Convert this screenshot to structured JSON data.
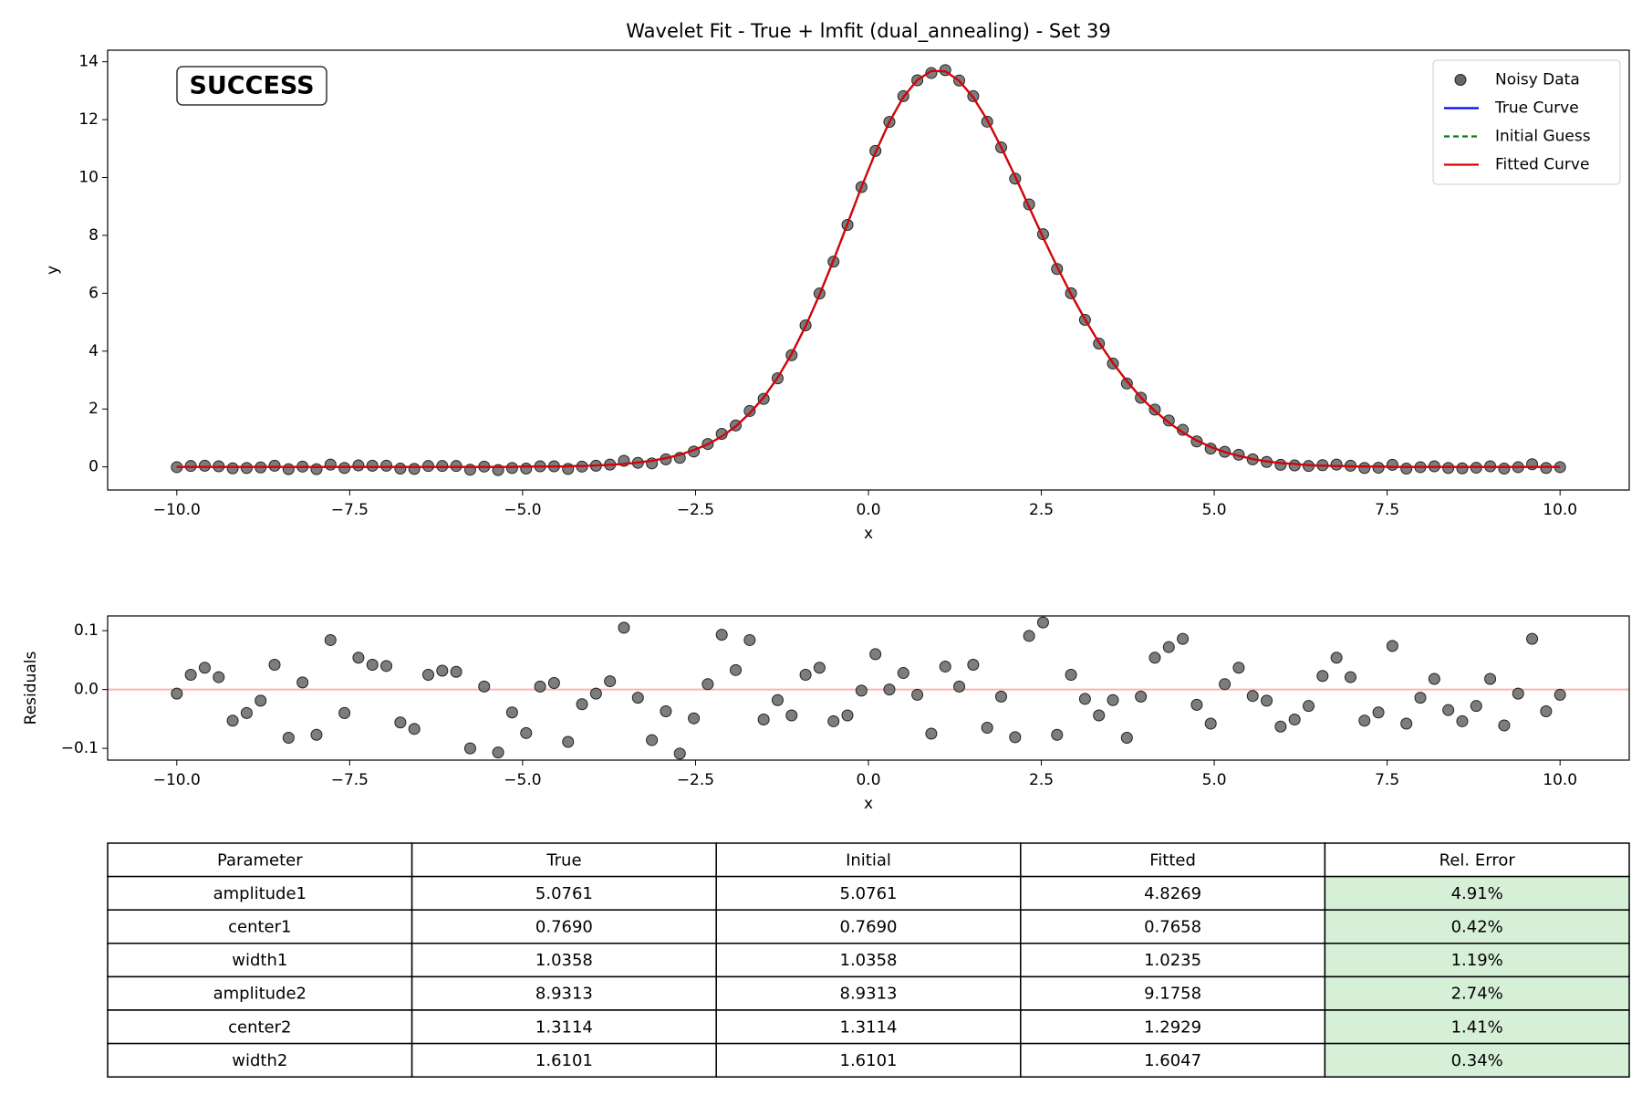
{
  "chart_data": [
    {
      "type": "line",
      "title": "Wavelet Fit - True + lmfit (dual_annealing) - Set 39",
      "badge": "SUCCESS",
      "badge_color": "#008000",
      "x_label": "x",
      "y_label": "y",
      "x": [
        -10,
        -9.798,
        -9.596,
        -9.394,
        -9.192,
        -8.99,
        -8.788,
        -8.586,
        -8.384,
        -8.182,
        -7.98,
        -7.778,
        -7.576,
        -7.374,
        -7.172,
        -6.97,
        -6.768,
        -6.566,
        -6.364,
        -6.162,
        -5.96,
        -5.758,
        -5.556,
        -5.354,
        -5.152,
        -4.949,
        -4.747,
        -4.545,
        -4.343,
        -4.141,
        -3.939,
        -3.737,
        -3.535,
        -3.333,
        -3.131,
        -2.929,
        -2.727,
        -2.525,
        -2.323,
        -2.121,
        -1.919,
        -1.717,
        -1.515,
        -1.313,
        -1.111,
        -0.909,
        -0.707,
        -0.505,
        -0.303,
        -0.101,
        0.101,
        0.303,
        0.505,
        0.707,
        0.909,
        1.111,
        1.313,
        1.515,
        1.717,
        1.919,
        2.121,
        2.323,
        2.525,
        2.727,
        2.929,
        3.131,
        3.333,
        3.535,
        3.737,
        3.939,
        4.141,
        4.343,
        4.545,
        4.747,
        4.949,
        5.152,
        5.354,
        5.556,
        5.758,
        5.96,
        6.162,
        6.364,
        6.566,
        6.768,
        6.97,
        7.172,
        7.374,
        7.576,
        7.778,
        7.98,
        8.182,
        8.384,
        8.586,
        8.788,
        8.99,
        9.192,
        9.394,
        9.596,
        9.798,
        10
      ],
      "series": [
        {
          "name": "Noisy Data",
          "color": "#666666",
          "linestyle": "none",
          "marker": "o",
          "values": [
            -0.01,
            0.03,
            0.04,
            0.02,
            -0.05,
            -0.04,
            -0.02,
            0.04,
            -0.08,
            0.01,
            -0.08,
            0.08,
            -0.04,
            0.05,
            0.04,
            0.04,
            -0.06,
            -0.07,
            0.03,
            0.03,
            0.03,
            -0.1,
            0.01,
            -0.11,
            -0.04,
            -0.06,
            0.02,
            0.02,
            -0.07,
            0.01,
            0.04,
            0.08,
            0.21,
            0.14,
            0.12,
            0.26,
            0.31,
            0.53,
            0.79,
            1.14,
            1.43,
            1.93,
            2.35,
            3.06,
            3.86,
            4.89,
            5.99,
            7.09,
            8.36,
            9.67,
            10.92,
            11.92,
            12.81,
            13.36,
            13.61,
            13.71,
            13.35,
            12.81,
            11.93,
            11.04,
            9.96,
            9.07,
            8.04,
            6.84,
            6.0,
            5.08,
            4.26,
            3.57,
            2.88,
            2.39,
            1.98,
            1.6,
            1.28,
            0.88,
            0.63,
            0.52,
            0.42,
            0.26,
            0.17,
            0.07,
            0.05,
            0.03,
            0.06,
            0.08,
            0.04,
            -0.04,
            -0.03,
            0.07,
            -0.06,
            -0.01,
            0.02,
            -0.04,
            -0.05,
            -0.03,
            0.02,
            -0.06,
            -0.01,
            0.09,
            -0.04,
            -0.01
          ]
        },
        {
          "name": "True Curve",
          "color": "#0000ff",
          "linestyle": "solid",
          "values": [
            0,
            0,
            0,
            0,
            0,
            0,
            0,
            0,
            0,
            0,
            0,
            0,
            0,
            0,
            0,
            0,
            0,
            0,
            0,
            0,
            0,
            0,
            0,
            0,
            0,
            0.01,
            0.01,
            0.01,
            0.02,
            0.03,
            0.05,
            0.07,
            0.1,
            0.15,
            0.21,
            0.3,
            0.42,
            0.58,
            0.78,
            1.05,
            1.4,
            1.85,
            2.4,
            3.08,
            3.9,
            4.86,
            5.95,
            7.14,
            8.4,
            9.67,
            10.86,
            11.92,
            12.78,
            13.37,
            13.68,
            13.67,
            13.34,
            12.77,
            11.99,
            11.05,
            10.04,
            8.98,
            7.93,
            6.92,
            5.97,
            5.1,
            4.3,
            3.59,
            2.96,
            2.4,
            1.93,
            1.53,
            1.19,
            0.91,
            0.69,
            0.51,
            0.38,
            0.27,
            0.19,
            0.13,
            0.1,
            0.06,
            0.04,
            0.03,
            0.02,
            0.01,
            0.01,
            0,
            0,
            0,
            0,
            0,
            0,
            0,
            0,
            0,
            0,
            0,
            0,
            0
          ]
        },
        {
          "name": "Initial Guess",
          "color": "#008000",
          "linestyle": "dashed",
          "values": [
            0,
            0,
            0,
            0,
            0,
            0,
            0,
            0,
            0,
            0,
            0,
            0,
            0,
            0,
            0,
            0,
            0,
            0,
            0,
            0,
            0,
            0,
            0,
            0,
            0,
            0.01,
            0.01,
            0.01,
            0.02,
            0.03,
            0.05,
            0.07,
            0.1,
            0.15,
            0.21,
            0.3,
            0.42,
            0.58,
            0.78,
            1.05,
            1.4,
            1.85,
            2.4,
            3.08,
            3.9,
            4.86,
            5.95,
            7.14,
            8.4,
            9.67,
            10.86,
            11.92,
            12.78,
            13.37,
            13.68,
            13.67,
            13.34,
            12.77,
            11.99,
            11.05,
            10.04,
            8.98,
            7.93,
            6.92,
            5.97,
            5.1,
            4.3,
            3.59,
            2.96,
            2.4,
            1.93,
            1.53,
            1.19,
            0.91,
            0.69,
            0.51,
            0.38,
            0.27,
            0.19,
            0.13,
            0.1,
            0.06,
            0.04,
            0.03,
            0.02,
            0.01,
            0.01,
            0,
            0,
            0,
            0,
            0,
            0,
            0,
            0,
            0,
            0,
            0,
            0,
            0
          ]
        },
        {
          "name": "Fitted Curve",
          "color": "#e00000",
          "linestyle": "solid",
          "values": [
            0,
            0,
            0,
            0,
            0,
            0,
            0,
            0,
            0,
            0,
            0,
            0,
            0,
            0,
            0,
            0,
            0,
            0,
            0,
            0,
            0,
            0,
            0,
            0,
            0,
            0.01,
            0.01,
            0.01,
            0.02,
            0.03,
            0.05,
            0.07,
            0.1,
            0.15,
            0.21,
            0.3,
            0.42,
            0.58,
            0.78,
            1.05,
            1.4,
            1.85,
            2.4,
            3.08,
            3.9,
            4.86,
            5.95,
            7.14,
            8.4,
            9.67,
            10.86,
            11.92,
            12.78,
            13.37,
            13.68,
            13.67,
            13.34,
            12.77,
            11.99,
            11.05,
            10.04,
            8.98,
            7.93,
            6.92,
            5.97,
            5.1,
            4.3,
            3.59,
            2.96,
            2.4,
            1.93,
            1.53,
            1.19,
            0.91,
            0.69,
            0.51,
            0.38,
            0.27,
            0.19,
            0.13,
            0.1,
            0.06,
            0.04,
            0.03,
            0.02,
            0.01,
            0.01,
            0,
            0,
            0,
            0,
            0,
            0,
            0,
            0,
            0,
            0,
            0,
            0,
            0
          ]
        }
      ],
      "xlim": [
        -11,
        11
      ],
      "xticks": [
        {
          "value": -10,
          "label": "−10.0"
        },
        {
          "value": -7.5,
          "label": "−7.5"
        },
        {
          "value": -5,
          "label": "−5.0"
        },
        {
          "value": -2.5,
          "label": "−2.5"
        },
        {
          "value": 0,
          "label": "0.0"
        },
        2.5,
        {
          "value": 5,
          "label": "5.0"
        },
        7.5,
        {
          "value": 10,
          "label": "10.0"
        }
      ],
      "ylim": [
        -0.8,
        14.4
      ],
      "yticks": [
        0,
        2,
        4,
        6,
        8,
        10,
        12,
        14
      ],
      "legend": "upper right"
    },
    {
      "type": "scatter",
      "x_label": "x",
      "y_label": "Residuals",
      "color": "#666666",
      "hline": {
        "value": 0,
        "color": "#ffb0b0"
      },
      "x": [
        -10,
        -9.798,
        -9.596,
        -9.394,
        -9.192,
        -8.99,
        -8.788,
        -8.586,
        -8.384,
        -8.182,
        -7.98,
        -7.778,
        -7.576,
        -7.374,
        -7.172,
        -6.97,
        -6.768,
        -6.566,
        -6.364,
        -6.162,
        -5.96,
        -5.758,
        -5.556,
        -5.354,
        -5.152,
        -4.949,
        -4.747,
        -4.545,
        -4.343,
        -4.141,
        -3.939,
        -3.737,
        -3.535,
        -3.333,
        -3.131,
        -2.929,
        -2.727,
        -2.525,
        -2.323,
        -2.121,
        -1.919,
        -1.717,
        -1.515,
        -1.313,
        -1.111,
        -0.909,
        -0.707,
        -0.505,
        -0.303,
        -0.101,
        0.101,
        0.303,
        0.505,
        0.707,
        0.909,
        1.111,
        1.313,
        1.515,
        1.717,
        1.919,
        2.121,
        2.323,
        2.525,
        2.727,
        2.929,
        3.131,
        3.333,
        3.535,
        3.737,
        3.939,
        4.141,
        4.343,
        4.545,
        4.747,
        4.949,
        5.152,
        5.354,
        5.556,
        5.758,
        5.96,
        6.162,
        6.364,
        6.566,
        6.768,
        6.97,
        7.172,
        7.374,
        7.576,
        7.778,
        7.98,
        8.182,
        8.384,
        8.586,
        8.788,
        8.99,
        9.192,
        9.394,
        9.596,
        9.798,
        10
      ],
      "values": [
        -0.007,
        0.025,
        0.037,
        0.021,
        -0.053,
        -0.04,
        -0.019,
        0.042,
        -0.082,
        0.012,
        -0.077,
        0.084,
        -0.04,
        0.054,
        0.042,
        0.04,
        -0.056,
        -0.067,
        0.025,
        0.032,
        0.03,
        -0.1,
        0.005,
        -0.107,
        -0.039,
        -0.074,
        0.005,
        0.011,
        -0.089,
        -0.025,
        -0.007,
        0.014,
        0.105,
        -0.014,
        -0.086,
        -0.037,
        -0.109,
        -0.049,
        0.009,
        0.093,
        0.033,
        0.084,
        -0.051,
        -0.018,
        -0.044,
        0.025,
        0.037,
        -0.054,
        -0.044,
        -0.002,
        0.06,
        0,
        0.028,
        -0.009,
        -0.075,
        0.039,
        0.005,
        0.042,
        -0.065,
        -0.012,
        -0.081,
        0.091,
        0.114,
        -0.077,
        0.025,
        -0.016,
        -0.044,
        -0.018,
        -0.082,
        -0.012,
        0.054,
        0.072,
        0.086,
        -0.026,
        -0.058,
        0.009,
        0.037,
        -0.011,
        -0.019,
        -0.063,
        -0.051,
        -0.028,
        0.023,
        0.054,
        0.021,
        -0.053,
        -0.039,
        0.074,
        -0.058,
        -0.014,
        0.018,
        -0.035,
        -0.054,
        -0.028,
        0.018,
        -0.061,
        -0.007,
        0.086,
        -0.037,
        -0.009
      ],
      "xlim": [
        -11,
        11
      ],
      "xticks": [
        {
          "value": -10,
          "label": "−10.0"
        },
        {
          "value": -7.5,
          "label": "−7.5"
        },
        {
          "value": -5,
          "label": "−5.0"
        },
        {
          "value": -2.5,
          "label": "−2.5"
        },
        {
          "value": 0,
          "label": "0.0"
        },
        2.5,
        {
          "value": 5,
          "label": "5.0"
        },
        7.5,
        {
          "value": 10,
          "label": "10.0"
        }
      ],
      "ylim": [
        -0.12,
        0.125
      ],
      "yticks": [
        {
          "value": -0.1,
          "label": "−0.1"
        },
        {
          "value": 0,
          "label": "0.0"
        },
        0.1
      ]
    }
  ],
  "table": {
    "columns": [
      "Parameter",
      "True",
      "Initial",
      "Fitted",
      "Rel. Error"
    ],
    "rows": [
      [
        "amplitude1",
        "5.0761",
        "5.0761",
        "4.8269",
        "4.91%"
      ],
      [
        "center1",
        "0.7690",
        "0.7690",
        "0.7658",
        "0.42%"
      ],
      [
        "width1",
        "1.0358",
        "1.0358",
        "1.0235",
        "1.19%"
      ],
      [
        "amplitude2",
        "8.9313",
        "8.9313",
        "9.1758",
        "2.74%"
      ],
      [
        "center2",
        "1.3114",
        "1.3114",
        "1.2929",
        "1.41%"
      ],
      [
        "width2",
        "1.6101",
        "1.6101",
        "1.6047",
        "0.34%"
      ]
    ],
    "highlight_column": 4,
    "highlight_color": "#d6f0d8"
  }
}
